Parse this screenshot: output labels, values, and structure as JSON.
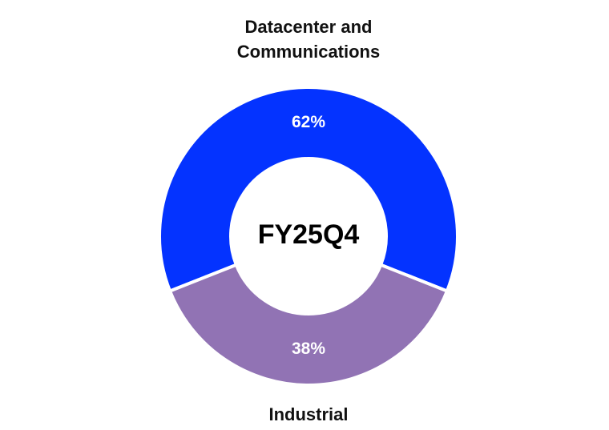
{
  "chart_data": {
    "type": "pie",
    "variant": "donut",
    "center_text": "FY25Q4",
    "slices": [
      {
        "label_lines": [
          "Datacenter and",
          "Communications"
        ],
        "value": 62,
        "display": "62%",
        "color": "#0433FF"
      },
      {
        "label_lines": [
          "Industrial"
        ],
        "value": 38,
        "display": "38%",
        "color": "#9173B4"
      }
    ],
    "legend": "none"
  }
}
